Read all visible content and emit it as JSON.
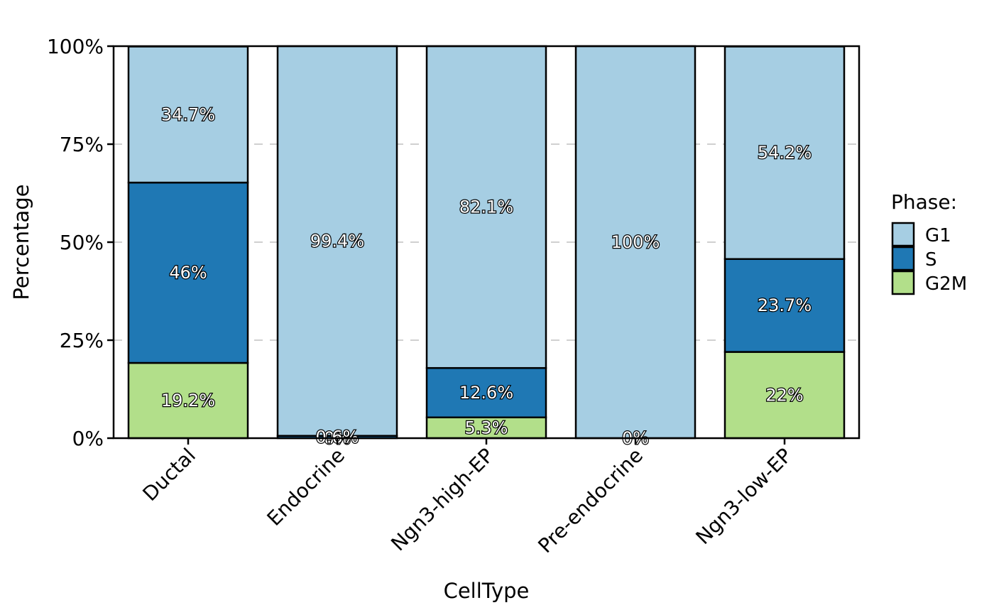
{
  "chart_data": {
    "type": "bar",
    "stacked": true,
    "title": "",
    "xlabel": "CellType",
    "ylabel": "Percentage",
    "ylim": [
      0,
      100
    ],
    "y_ticks": [
      "0%",
      "25%",
      "50%",
      "75%",
      "100%"
    ],
    "grid": "dashed horizontal lines at 25%, 50%, 75%",
    "legend_title": "Phase:",
    "legend_position": "right",
    "categories": [
      "Ductal",
      "Endocrine",
      "Ngn3-high-EP",
      "Pre-endocrine",
      "Ngn3-low-EP"
    ],
    "series": [
      {
        "name": "G2M",
        "color": "#B2DF8A",
        "values": [
          19.2,
          0,
          5.3,
          0,
          22
        ],
        "labels": [
          "19.2%",
          "0%",
          "5.3%",
          "0%",
          "22%"
        ]
      },
      {
        "name": "S",
        "color": "#1F78B4",
        "values": [
          46,
          0.6,
          12.6,
          0,
          23.7
        ],
        "labels": [
          "46%",
          "0.6%",
          "12.6%",
          "",
          "23.7%"
        ]
      },
      {
        "name": "G1",
        "color": "#A6CEE3",
        "values": [
          34.7,
          99.4,
          82.1,
          100,
          54.2
        ],
        "labels": [
          "34.7%",
          "99.4%",
          "82.1%",
          "100%",
          "54.2%"
        ]
      }
    ],
    "legend_order": [
      "G1",
      "S",
      "G2M"
    ]
  }
}
